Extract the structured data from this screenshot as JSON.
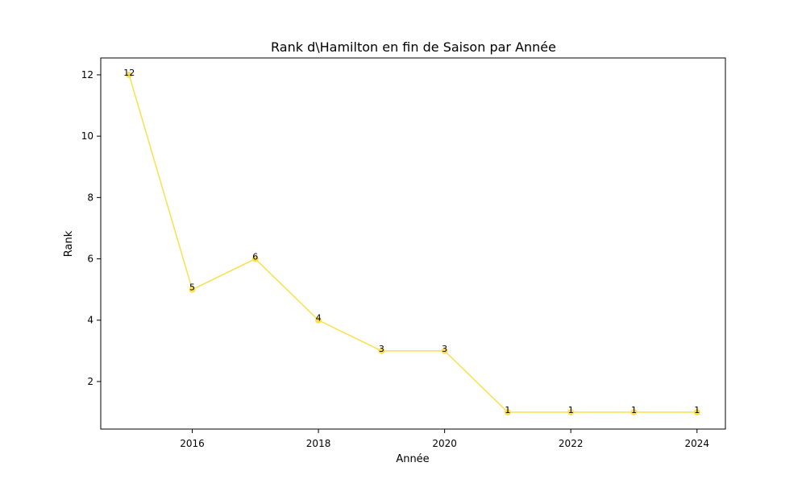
{
  "chart_data": {
    "type": "line",
    "title": "Rank d\\Hamilton en fin de Saison par Année",
    "xlabel": "Année",
    "ylabel": "Rank",
    "x": [
      2015,
      2016,
      2017,
      2018,
      2019,
      2020,
      2021,
      2022,
      2023,
      2024
    ],
    "series": [
      {
        "values": [
          12,
          5,
          6,
          4,
          3,
          3,
          1,
          1,
          1,
          1
        ],
        "color": "#f9e04b"
      }
    ],
    "xlim": [
      2014.55,
      2024.45
    ],
    "ylim": [
      0.45,
      12.55
    ],
    "xticks": [
      "2016",
      "2018",
      "2020",
      "2022",
      "2024"
    ],
    "yticks": [
      "2",
      "4",
      "6",
      "8",
      "10",
      "12"
    ],
    "data_labels": [
      "12",
      "5",
      "6",
      "4",
      "3",
      "3",
      "1",
      "1",
      "1",
      "1"
    ],
    "grid": false,
    "legend": false
  }
}
